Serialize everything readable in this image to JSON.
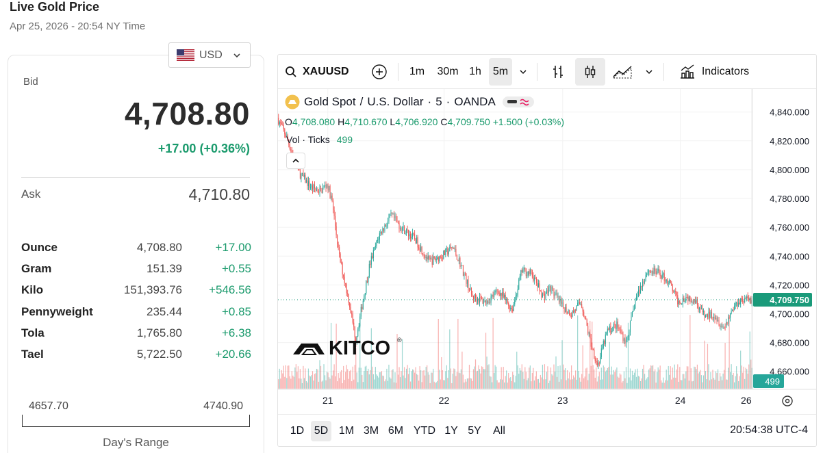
{
  "header": {
    "title": "Live Gold Price",
    "subtitle": "Apr 25, 2026 - 20:54 NY Time"
  },
  "currency": {
    "selected": "USD",
    "flag_icon": "us-flag-icon"
  },
  "quote": {
    "bid_label": "Bid",
    "bid": "4,708.80",
    "change": "+17.00 (+0.36%)",
    "ask_label": "Ask",
    "ask": "4,710.80",
    "up_color": "#1a9a6c"
  },
  "units": [
    {
      "name": "Ounce",
      "price": "4,708.80",
      "change": "+17.00"
    },
    {
      "name": "Gram",
      "price": "151.39",
      "change": "+0.55"
    },
    {
      "name": "Kilo",
      "price": "151,393.76",
      "change": "+546.56"
    },
    {
      "name": "Pennyweight",
      "price": "235.44",
      "change": "+0.85"
    },
    {
      "name": "Tola",
      "price": "1,765.80",
      "change": "+6.38"
    },
    {
      "name": "Tael",
      "price": "5,722.50",
      "change": "+20.66"
    }
  ],
  "days_range": {
    "low": "4657.70",
    "high": "4740.90",
    "label": "Day's Range"
  },
  "chart_toolbar": {
    "symbol": "XAUUSD",
    "intervals": [
      "1m",
      "30m",
      "1h",
      "5m"
    ],
    "active_interval": "5m",
    "indicators_label": "Indicators"
  },
  "chart_legend": {
    "title": "Gold Spot",
    "sep1": "/",
    "quote_ccy": "U.S. Dollar",
    "dot1": "·",
    "interval": "5",
    "dot2": "·",
    "source": "OANDA",
    "o_label": "O",
    "o": "4,708.080",
    "h_label": "H",
    "h": "4,710.670",
    "l_label": "L",
    "l": "4,706.920",
    "c_label": "C",
    "c": "4,709.750",
    "chg": "+1.500 (+0.03%)",
    "vol_label": "Vol · Ticks",
    "vol": "499"
  },
  "watermark": "KITCO",
  "range_buttons": [
    "1D",
    "5D",
    "1M",
    "3M",
    "6M",
    "YTD",
    "1Y",
    "5Y",
    "All"
  ],
  "active_range": "5D",
  "clock": "20:54:38 UTC-4",
  "colors": {
    "up": "#26a69a",
    "down": "#ef5350",
    "price_tag": "#1a9a7a",
    "vol_tag": "#26a69a"
  },
  "chart_data": {
    "type": "candlestick",
    "title": "Gold Spot / U.S. Dollar · 5 · OANDA",
    "x_tick_labels": [
      "21",
      "22",
      "23",
      "24",
      "26"
    ],
    "y_tick_labels": [
      "4,840.000",
      "4,820.000",
      "4,800.000",
      "4,780.000",
      "4,760.000",
      "4,740.000",
      "4,720.000",
      "4,700.000",
      "4,680.000",
      "4,660.000"
    ],
    "ylim": [
      4648,
      4856
    ],
    "last_price": "4,709.750",
    "last_volume": "499",
    "path": [
      [
        0,
        4836
      ],
      [
        0.02,
        4822
      ],
      [
        0.045,
        4798
      ],
      [
        0.07,
        4788
      ],
      [
        0.09,
        4785
      ],
      [
        0.105,
        4790
      ],
      [
        0.115,
        4778
      ],
      [
        0.13,
        4740
      ],
      [
        0.15,
        4710
      ],
      [
        0.165,
        4682
      ],
      [
        0.175,
        4700
      ],
      [
        0.195,
        4735
      ],
      [
        0.215,
        4755
      ],
      [
        0.24,
        4768
      ],
      [
        0.26,
        4760
      ],
      [
        0.29,
        4752
      ],
      [
        0.32,
        4736
      ],
      [
        0.345,
        4740
      ],
      [
        0.37,
        4746
      ],
      [
        0.385,
        4735
      ],
      [
        0.41,
        4712
      ],
      [
        0.44,
        4708
      ],
      [
        0.465,
        4716
      ],
      [
        0.495,
        4703
      ],
      [
        0.515,
        4730
      ],
      [
        0.535,
        4728
      ],
      [
        0.56,
        4712
      ],
      [
        0.575,
        4718
      ],
      [
        0.6,
        4705
      ],
      [
        0.62,
        4700
      ],
      [
        0.64,
        4708
      ],
      [
        0.66,
        4680
      ],
      [
        0.675,
        4664
      ],
      [
        0.695,
        4688
      ],
      [
        0.715,
        4692
      ],
      [
        0.735,
        4680
      ],
      [
        0.755,
        4710
      ],
      [
        0.78,
        4730
      ],
      [
        0.805,
        4728
      ],
      [
        0.825,
        4722
      ],
      [
        0.845,
        4708
      ],
      [
        0.86,
        4712
      ],
      [
        0.88,
        4710
      ],
      [
        0.9,
        4698
      ],
      [
        0.92,
        4700
      ],
      [
        0.94,
        4690
      ],
      [
        0.96,
        4704
      ],
      [
        0.975,
        4710
      ],
      [
        1.0,
        4709.75
      ]
    ]
  }
}
